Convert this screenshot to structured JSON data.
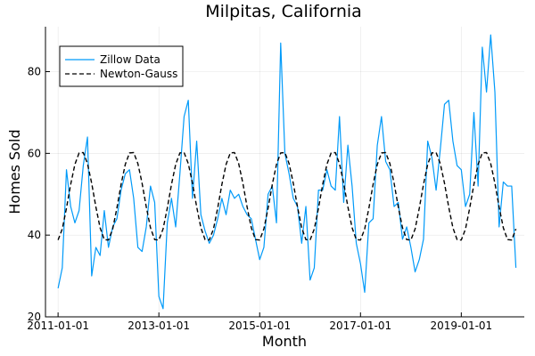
{
  "chart_data": {
    "type": "line",
    "title": "Milpitas, California",
    "xlabel": "Month",
    "ylabel": "Homes Sold",
    "xlim": [
      "2010-10-01",
      "2020-04-01"
    ],
    "ylim": [
      20,
      91
    ],
    "grid": true,
    "legend": "top-left",
    "x_ticks": [
      "2011-01-01",
      "2013-01-01",
      "2015-01-01",
      "2017-01-01",
      "2019-01-01"
    ],
    "y_ticks": [
      20,
      40,
      60,
      80
    ],
    "series": [
      {
        "name": "Zillow Data",
        "color": "#009af9",
        "style": "solid",
        "start": "2011-01-01",
        "step": "month",
        "values": [
          27,
          32,
          56,
          47,
          43,
          46,
          57,
          64,
          30,
          37,
          35,
          46,
          37,
          42,
          44,
          51,
          55,
          56,
          49,
          37,
          36,
          42,
          52,
          48,
          25,
          22,
          43,
          49,
          42,
          55,
          69,
          73,
          49,
          63,
          45,
          41,
          38,
          40,
          44,
          49,
          45,
          51,
          49,
          50,
          47,
          45,
          44,
          39,
          34,
          37,
          50,
          52,
          43,
          87,
          60,
          55,
          49,
          47,
          38,
          47,
          29,
          32,
          51,
          51,
          56,
          52,
          51,
          69,
          48,
          62,
          52,
          38,
          33,
          26,
          43,
          44,
          62,
          69,
          58,
          56,
          47,
          48,
          39,
          42,
          37,
          31,
          34,
          39,
          63,
          59,
          51,
          61,
          72,
          73,
          63,
          57,
          56,
          47,
          50,
          70,
          52,
          86,
          75,
          89,
          75,
          42,
          53,
          52,
          52,
          32
        ]
      },
      {
        "name": "Newton-Gauss",
        "color": "#000000",
        "style": "dashed",
        "start": "2011-01-01",
        "step": "month",
        "values": [
          38.8,
          41.5,
          46.6,
          52.4,
          57.3,
          60.1,
          60.2,
          57.5,
          52.7,
          46.9,
          41.8,
          38.9,
          38.8,
          41.5,
          46.6,
          52.4,
          57.3,
          60.1,
          60.2,
          57.5,
          52.7,
          46.9,
          41.8,
          38.9,
          38.8,
          41.5,
          46.6,
          52.4,
          57.3,
          60.1,
          60.2,
          57.5,
          52.7,
          46.9,
          41.8,
          38.9,
          38.8,
          41.5,
          46.6,
          52.4,
          57.3,
          60.1,
          60.2,
          57.5,
          52.7,
          46.9,
          41.8,
          38.9,
          38.8,
          41.5,
          46.6,
          52.4,
          57.3,
          60.1,
          60.2,
          57.5,
          52.7,
          46.9,
          41.8,
          38.9,
          38.8,
          41.5,
          46.6,
          52.4,
          57.3,
          60.1,
          60.2,
          57.5,
          52.7,
          46.9,
          41.8,
          38.9,
          38.8,
          41.5,
          46.6,
          52.4,
          57.3,
          60.1,
          60.2,
          57.5,
          52.7,
          46.9,
          41.8,
          38.9,
          38.8,
          41.5,
          46.6,
          52.4,
          57.3,
          60.1,
          60.2,
          57.5,
          52.7,
          46.9,
          41.8,
          38.9,
          38.8,
          41.5,
          46.6,
          52.4,
          57.3,
          60.1,
          60.2,
          57.5,
          52.7,
          46.9,
          41.8,
          38.9,
          38.8,
          41.5
        ]
      }
    ]
  }
}
